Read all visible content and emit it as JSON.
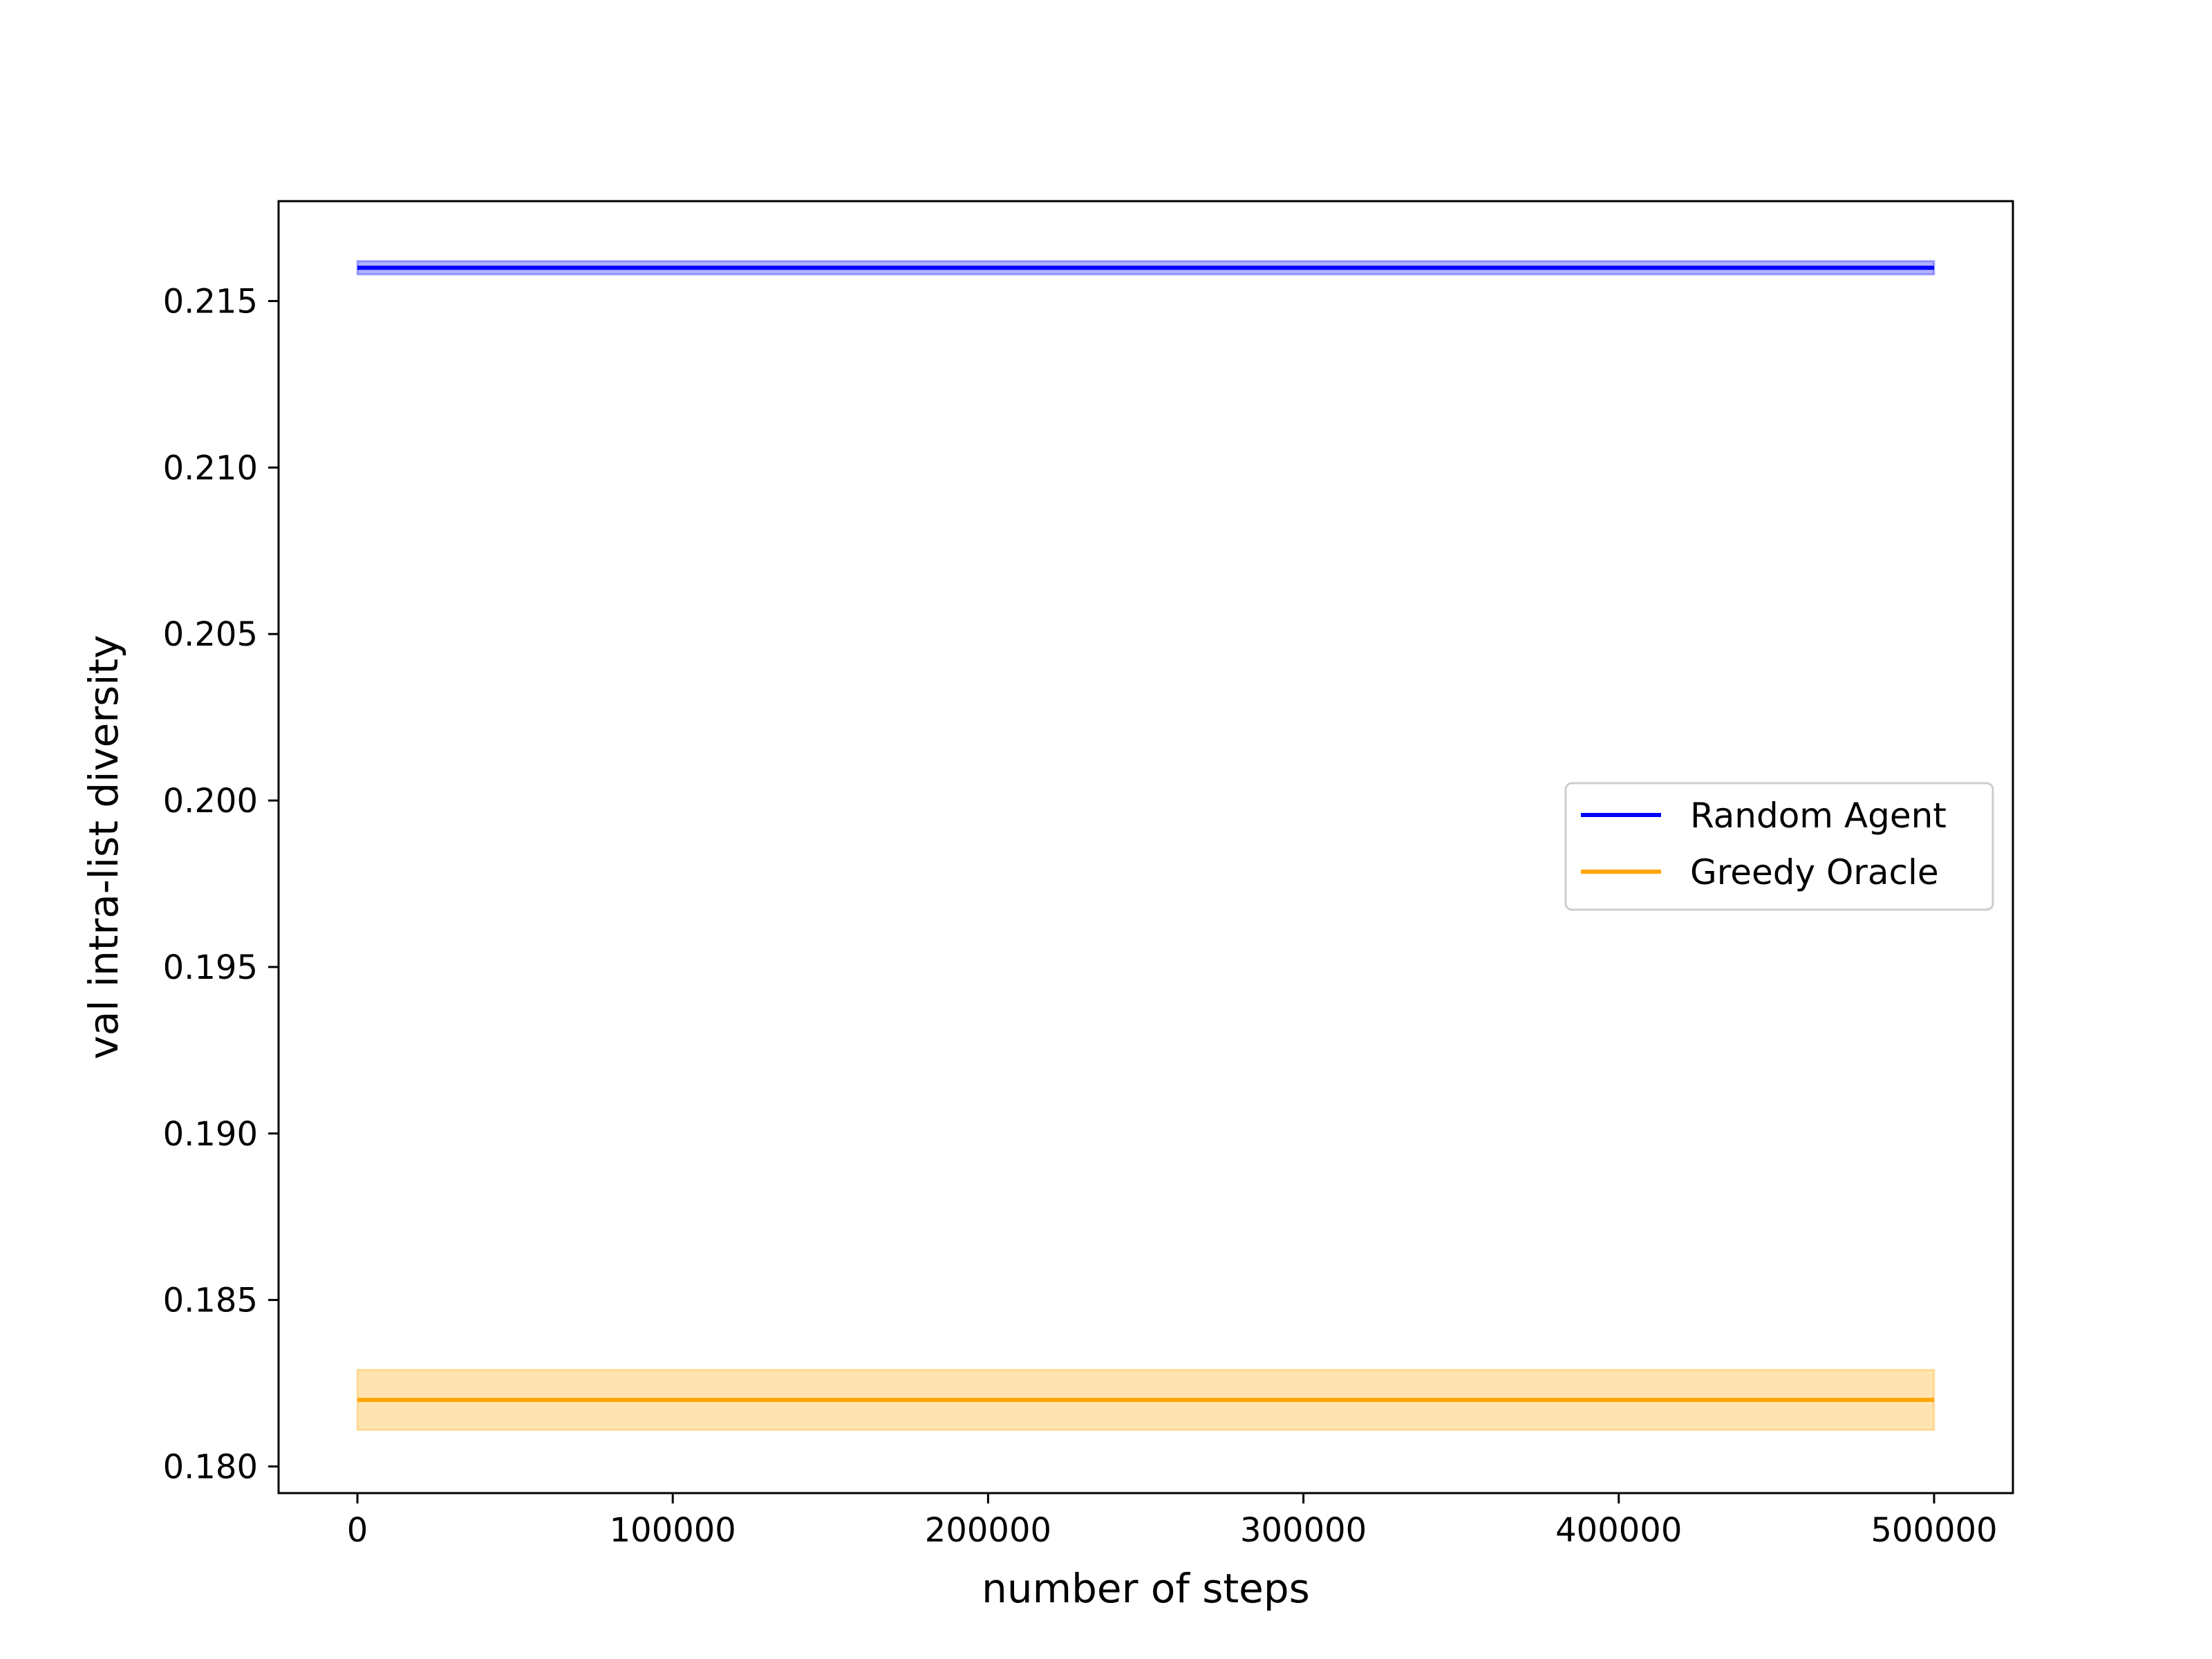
{
  "chart_data": {
    "type": "line",
    "title": "",
    "xlabel": "number of steps",
    "ylabel": "val intra-list diversity",
    "xlim": [
      -25000,
      525000
    ],
    "ylim": [
      0.1792,
      0.218
    ],
    "xticks": [
      0,
      100000,
      200000,
      300000,
      400000,
      500000
    ],
    "yticks": [
      0.18,
      0.185,
      0.19,
      0.195,
      0.2,
      0.205,
      0.21,
      0.215
    ],
    "xtick_labels": [
      "0",
      "100000",
      "200000",
      "300000",
      "400000",
      "500000"
    ],
    "ytick_labels": [
      "0.180",
      "0.185",
      "0.190",
      "0.195",
      "0.200",
      "0.205",
      "0.210",
      "0.215"
    ],
    "grid": false,
    "legend_position": "center-right",
    "series": [
      {
        "name": "Random Agent",
        "color": "#0000ff",
        "x": [
          0,
          500000
        ],
        "y": [
          0.216,
          0.216
        ],
        "band_lower": [
          0.2158,
          0.2158
        ],
        "band_upper": [
          0.2162,
          0.2162
        ]
      },
      {
        "name": "Greedy Oracle",
        "color": "#ffa500",
        "x": [
          0,
          500000
        ],
        "y": [
          0.182,
          0.182
        ],
        "band_lower": [
          0.1811,
          0.1811
        ],
        "band_upper": [
          0.1829,
          0.1829
        ]
      }
    ]
  }
}
